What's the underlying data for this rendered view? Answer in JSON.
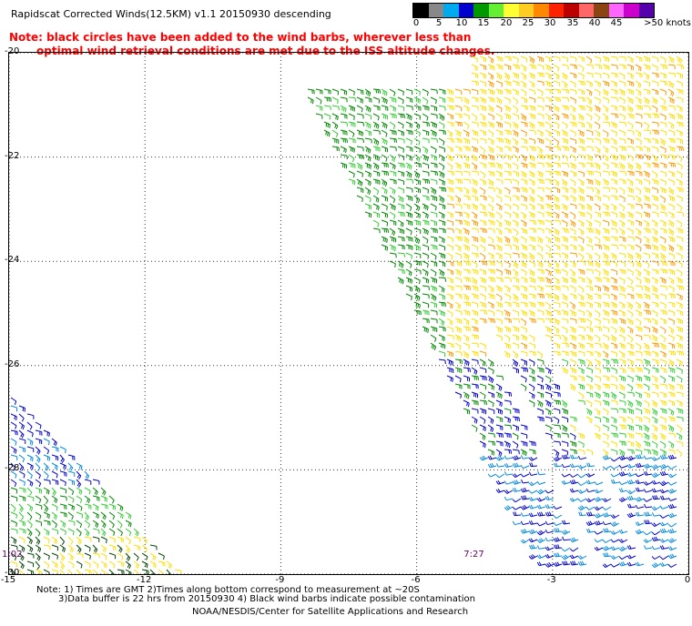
{
  "header": {
    "title": "Rapidscat Corrected Winds(12.5KM) v1.1 20150930 descending",
    "note_line1": "Note: black circles have been added to the wind barbs, wherever less than",
    "note_line2": "optimal wind retrieval conditions are met due to the ISS altitude changes."
  },
  "colorbar": {
    "unit_label": "knots",
    "labels": [
      "0",
      "5",
      "10",
      "15",
      "20",
      "25",
      "30",
      "35",
      "40",
      "45",
      ">50 knots"
    ],
    "colors": [
      "#000000",
      "#888888",
      "#00aaee",
      "#0000cc",
      "#009900",
      "#66ee33",
      "#ffff33",
      "#ffcc22",
      "#ff8800",
      "#ff2200",
      "#bb0000",
      "#ff6666",
      "#8b4513",
      "#ff66ff",
      "#cc00cc",
      "#5500aa"
    ]
  },
  "map": {
    "lat_labels": [
      "-20",
      "-22",
      "-24",
      "-26",
      "-28",
      "-30"
    ],
    "lon_labels": [
      "-15",
      "-12",
      "-9",
      "-6",
      "-3",
      "0"
    ],
    "lat_range": [
      -30,
      -20
    ],
    "lon_range": [
      -15,
      0
    ],
    "grid": "dotted",
    "time_labels": [
      {
        "text": "7:27",
        "lon": -4.8,
        "lat": -29.7
      },
      {
        "text": "1:02",
        "lon": -15.0,
        "lat": -29.7
      }
    ]
  },
  "footer": {
    "line1": "Note: 1) Times are GMT 2)Times along bottom correspond to measurement at ~20S",
    "line2": "3)Data buffer is 22 hrs from 20150930 4) Black wind barbs indicate possible contamination",
    "line3": "NOAA/NESDIS/Center for Satellite Applications and Research"
  }
}
